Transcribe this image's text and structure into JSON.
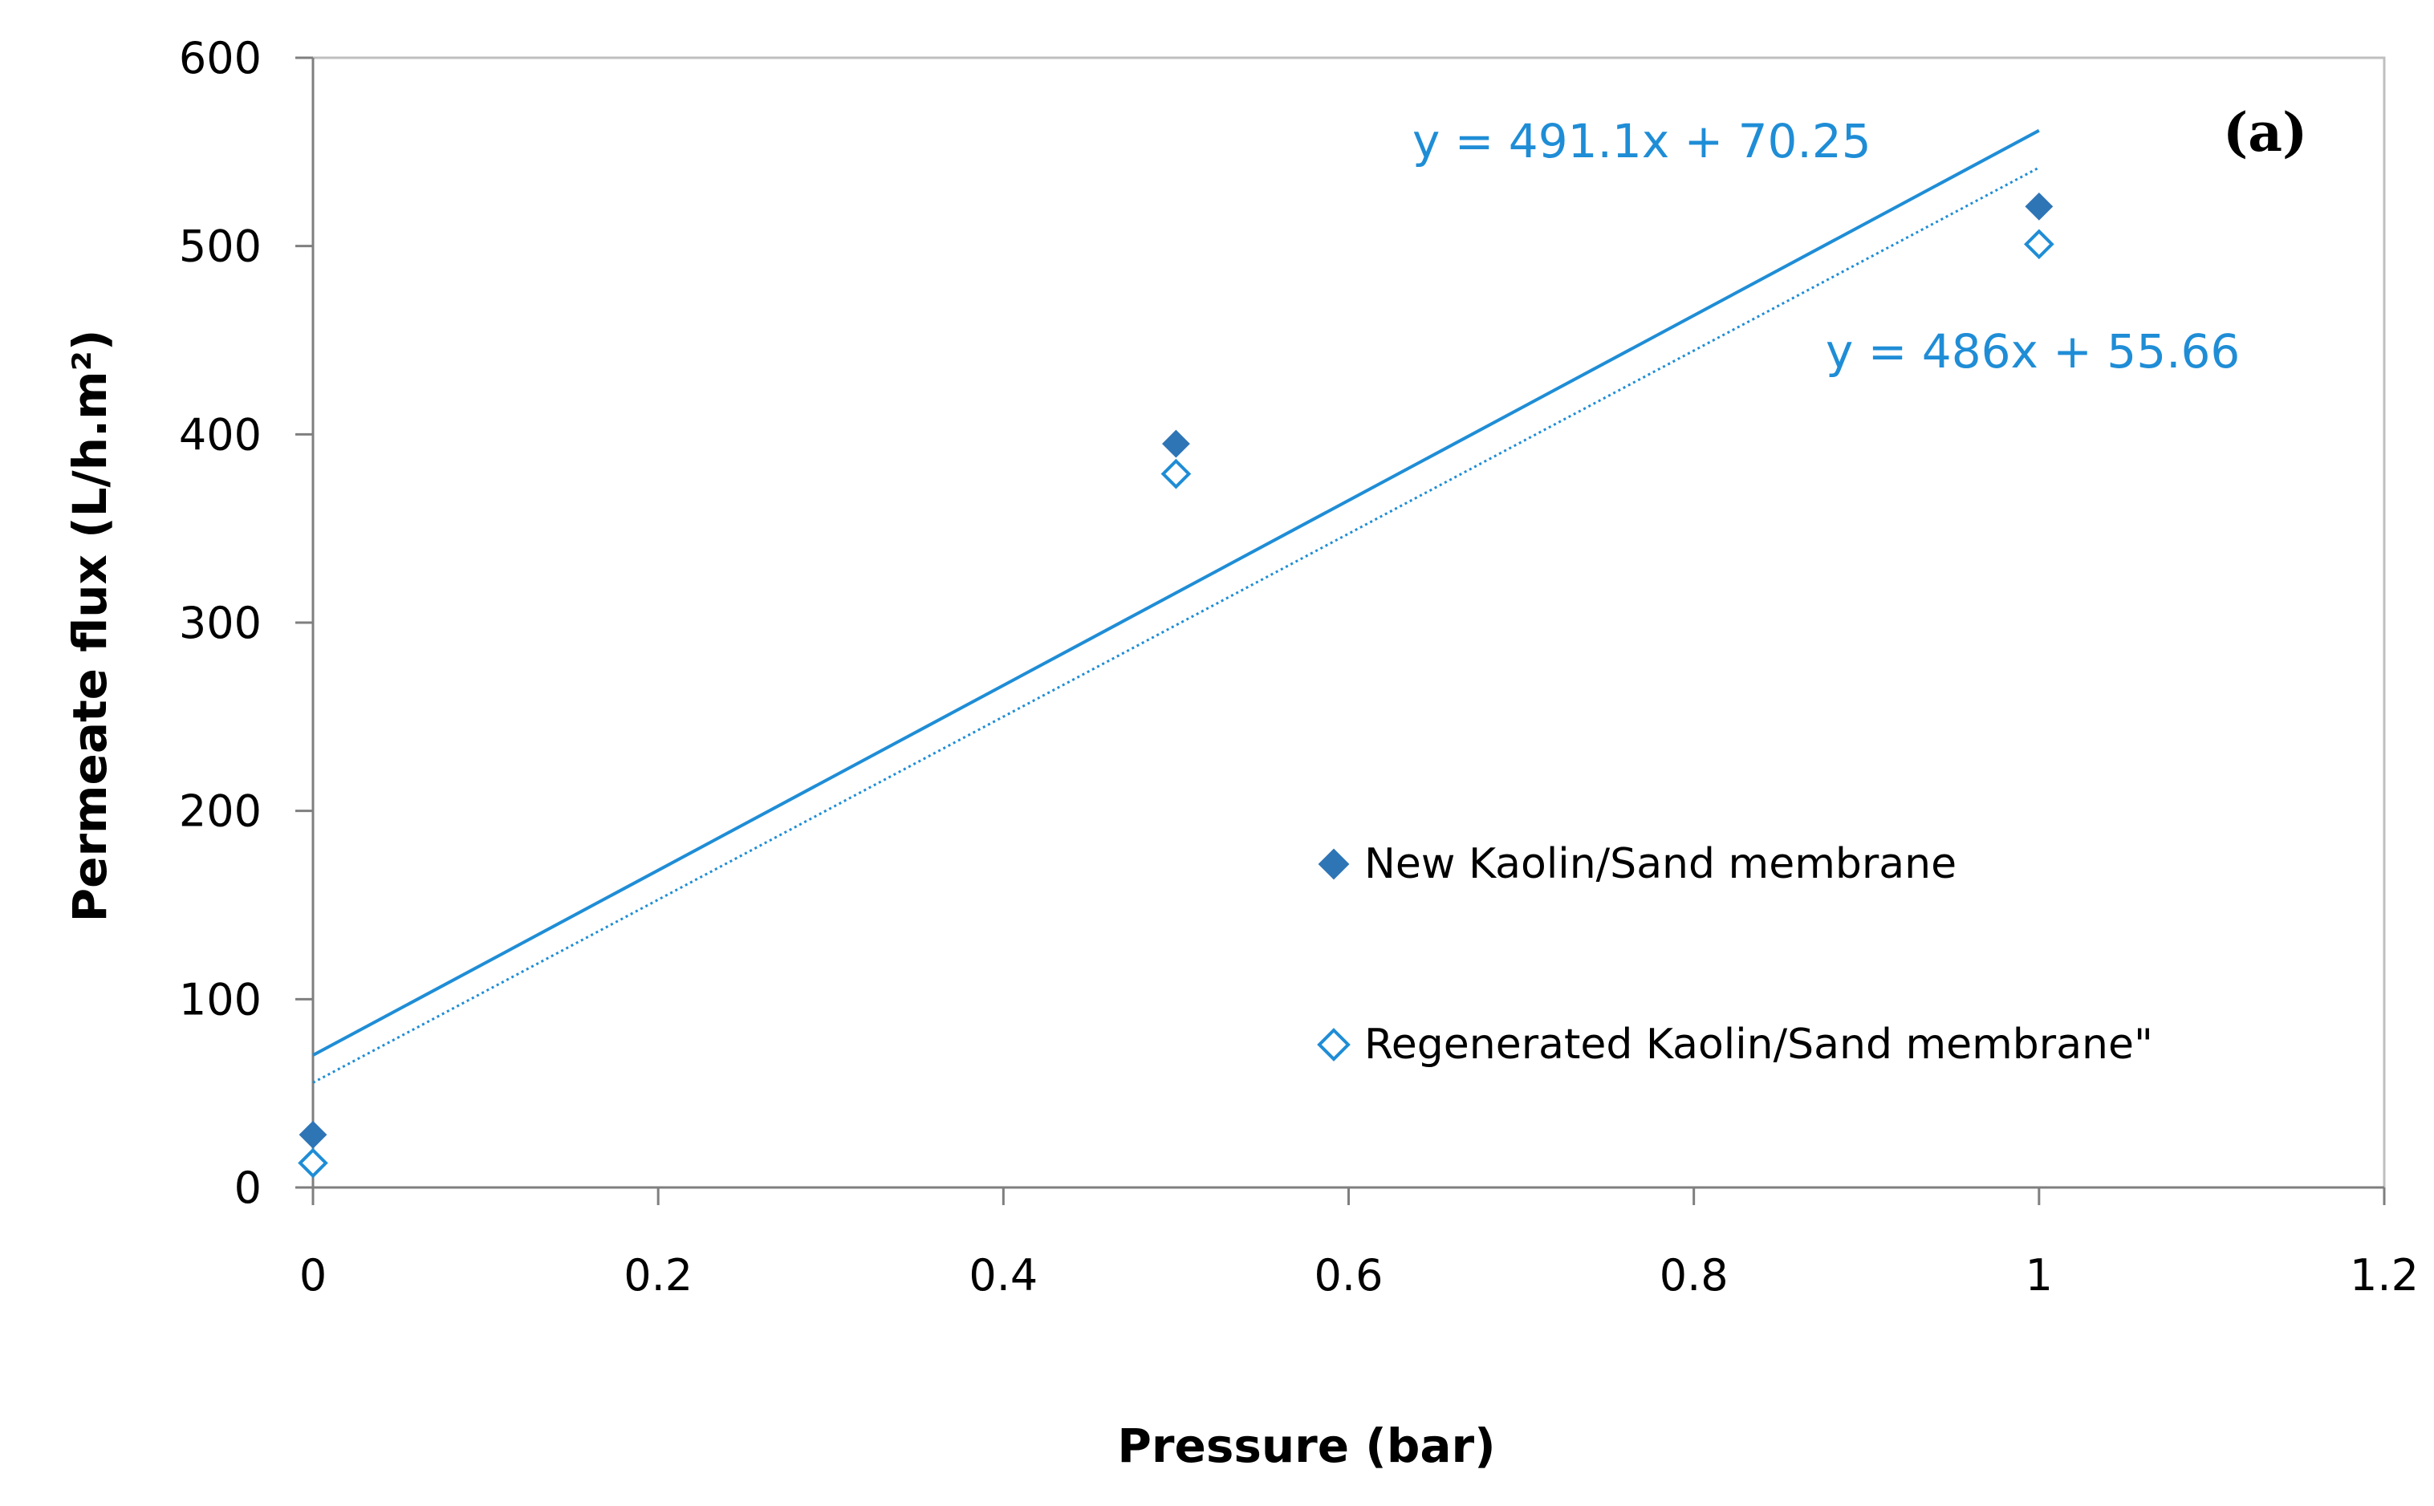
{
  "chart_data": {
    "type": "scatter",
    "panel_label": "(a)",
    "xlabel": "Pressure (bar)",
    "ylabel": "Permeate flux (L/h.m²)",
    "xlim": [
      0,
      1.2
    ],
    "ylim": [
      0,
      600
    ],
    "x_ticks": [
      "0",
      "0.2",
      "0.4",
      "0.6",
      "0.8",
      "1",
      "1.2"
    ],
    "y_ticks": [
      "0",
      "100",
      "200",
      "300",
      "400",
      "500",
      "600"
    ],
    "grid": false,
    "legend_position": "center-right",
    "colors": {
      "series_fill": "#2E75B6",
      "trendline": "#1F8DD6",
      "equation_text": "#1F8DD6"
    },
    "series": [
      {
        "name": "New Kaolin/Sand membrane",
        "marker": "filled-diamond",
        "x": [
          0,
          0.5,
          1
        ],
        "y": [
          28,
          395,
          521
        ],
        "trendline": {
          "slope": 491.1,
          "intercept": 70.25,
          "style": "solid",
          "equation": "y = 491.1x + 70.25"
        }
      },
      {
        "name": "Regenerated Kaolin/Sand membrane\"",
        "marker": "open-diamond",
        "x": [
          0,
          0.5,
          1
        ],
        "y": [
          13,
          379,
          501
        ],
        "trendline": {
          "slope": 486,
          "intercept": 55.66,
          "style": "dotted",
          "equation": "y = 486x + 55.66"
        }
      }
    ]
  }
}
